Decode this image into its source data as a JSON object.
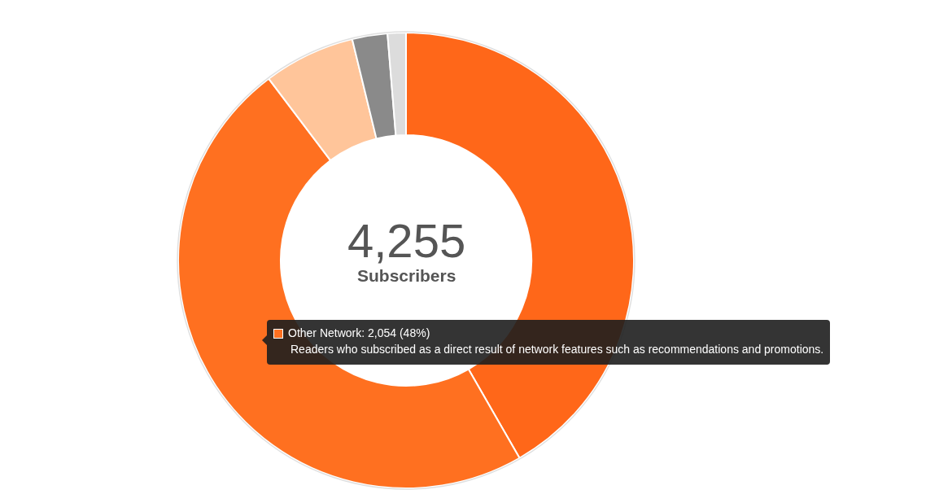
{
  "chart_data": {
    "type": "donut",
    "categories": [
      null,
      null,
      null,
      null,
      null
    ],
    "values": [
      41.7,
      48,
      6.5,
      2.5,
      1.3
    ],
    "colors": [
      "#ff6719",
      "#ff7020",
      "#ffc59a",
      "#8a8a8a",
      "#dcdcdc"
    ],
    "annotations": [
      "4,255",
      "Subscribers",
      "Other Network: 2,054 (48%)",
      "Readers who subscribed as a direct result of network features such as recommendations and promotions."
    ]
  }
}
